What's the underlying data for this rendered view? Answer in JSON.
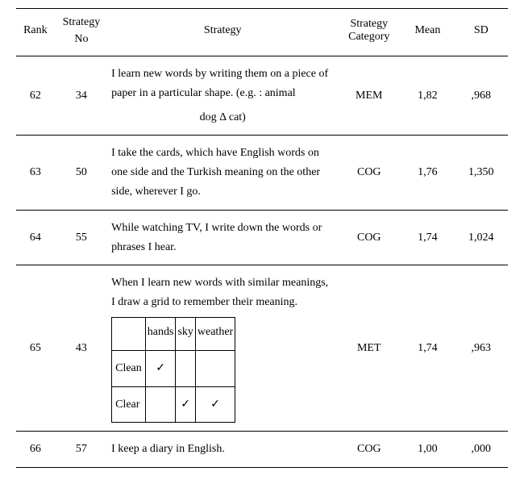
{
  "columns": {
    "rank": "Rank",
    "no_line1": "Strategy",
    "no_line2": "No",
    "strategy": "Strategy",
    "category": "Strategy Category",
    "mean": "Mean",
    "sd": "SD"
  },
  "rows": [
    {
      "rank": "62",
      "no": "34",
      "strategy_prefix": "I learn new words by writing them on a piece of paper in a particular shape. (e.g. :  animal",
      "strategy_example": "dog Δ cat)",
      "category": "MEM",
      "mean": "1,82",
      "sd": ",968"
    },
    {
      "rank": "63",
      "no": "50",
      "strategy_prefix": "I take the cards, which have English words on one side and the Turkish meaning on the other side, wherever I go.",
      "strategy_example": "",
      "category": "COG",
      "mean": "1,76",
      "sd": "1,350"
    },
    {
      "rank": "64",
      "no": "55",
      "strategy_prefix": "While watching TV, I write down the words or phrases I hear.",
      "strategy_example": "",
      "category": "COG",
      "mean": "1,74",
      "sd": "1,024"
    },
    {
      "rank": "65",
      "no": "43",
      "strategy_prefix": "When I learn new words with similar meanings, I draw a grid to remember their meaning.",
      "strategy_example": "",
      "category": "MET",
      "mean": "1,74",
      "sd": ",963",
      "grid": {
        "cols": [
          "",
          "hands",
          "sky",
          "weather"
        ],
        "rows": [
          {
            "label": "Clean",
            "cells": [
              "✓",
              "",
              ""
            ]
          },
          {
            "label": "Clear",
            "cells": [
              "",
              "✓",
              "✓"
            ]
          }
        ]
      }
    },
    {
      "rank": "66",
      "no": "57",
      "strategy_prefix": "I keep a diary in English.",
      "strategy_example": "",
      "category": "COG",
      "mean": "1,00",
      "sd": ",000"
    }
  ]
}
